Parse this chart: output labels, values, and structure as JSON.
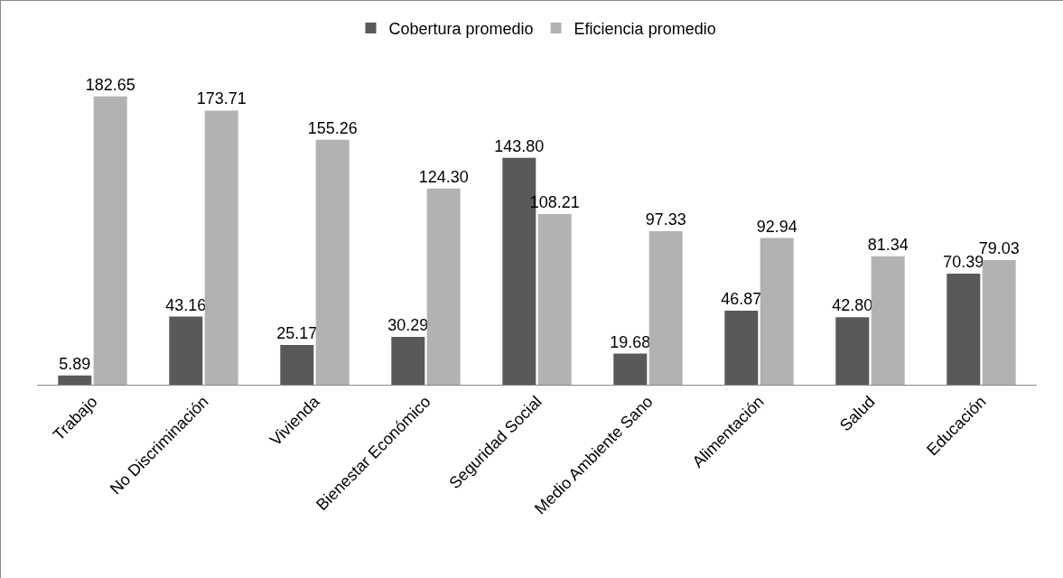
{
  "chart_data": {
    "type": "bar",
    "categories": [
      "Trabajo",
      "No Discriminación",
      "Vivienda",
      "Bienestar Económico",
      "Seguridad Social",
      "Medio Ambiente Sano",
      "Alimentación",
      "Salud",
      "Educación"
    ],
    "series": [
      {
        "name": "Cobertura promedio",
        "color": "#595959",
        "values": [
          5.89,
          43.16,
          25.17,
          30.29,
          143.8,
          19.68,
          46.87,
          42.8,
          70.39
        ],
        "value_labels": [
          "5.89",
          "43.16",
          "25.17",
          "30.29",
          "143.80",
          "19.68",
          "46.87",
          "42.80",
          "70.39"
        ]
      },
      {
        "name": "Eficiencia promedio",
        "color": "#b2b2b2",
        "values": [
          182.65,
          173.71,
          155.26,
          124.3,
          108.21,
          97.33,
          92.94,
          81.34,
          79.03
        ],
        "value_labels": [
          "182.65",
          "173.71",
          "155.26",
          "124.30",
          "108.21",
          "97.33",
          "92.94",
          "81.34",
          "79.03"
        ]
      }
    ],
    "legend": "top",
    "tick_labels": "x"
  }
}
